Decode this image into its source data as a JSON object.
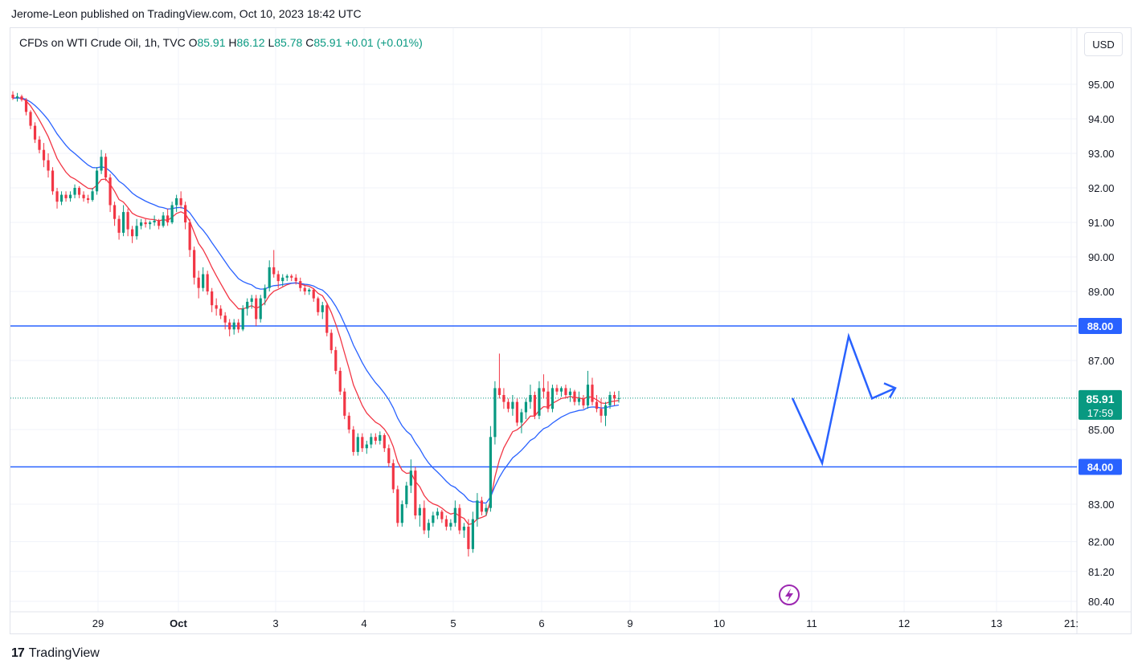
{
  "header": {
    "published": "Jerome-Leon published on TradingView.com, Oct 10, 2023 18:42 UTC"
  },
  "legend": {
    "symbol": "CFDs on WTI Crude Oil, 1h, TVC",
    "o_label": "O",
    "o_value": "85.91",
    "h_label": "H",
    "h_value": "86.12",
    "l_label": "L",
    "l_value": "85.78",
    "c_label": "C",
    "c_value": "85.91",
    "change": "+0.01 (+0.01%)"
  },
  "currency_button": "USD",
  "footer": {
    "brand": "TradingView",
    "logo": "17"
  },
  "colors": {
    "up": "#089981",
    "down": "#f23645",
    "level": "#2962ff",
    "ma_fast": "#f23645",
    "ma_slow": "#2962ff",
    "last_price": "#089981"
  },
  "chart_data": {
    "type": "candlestick",
    "title": "",
    "y_axis_ticks": [
      "95.00",
      "94.00",
      "93.00",
      "92.00",
      "91.00",
      "90.00",
      "89.00",
      "87.00",
      "85.00",
      "83.00",
      "82.00",
      "81.20",
      "80.40"
    ],
    "x_axis_ticks": [
      "29",
      "Oct",
      "3",
      "4",
      "5",
      "6",
      "9",
      "10",
      "11",
      "12",
      "13",
      "21:"
    ],
    "horizontal_levels": [
      {
        "value": 88.0,
        "label": "88.00"
      },
      {
        "value": 84.0,
        "label": "84.00"
      }
    ],
    "last_price": {
      "value": 85.91,
      "label": "85.91",
      "countdown": "17:59"
    },
    "ohlc": [
      [
        94.7,
        94.8,
        94.55,
        94.6
      ],
      [
        94.6,
        94.75,
        94.5,
        94.65
      ],
      [
        94.65,
        94.7,
        94.5,
        94.55
      ],
      [
        94.55,
        94.6,
        94.1,
        94.2
      ],
      [
        94.2,
        94.25,
        93.7,
        93.8
      ],
      [
        93.8,
        93.9,
        93.3,
        93.4
      ],
      [
        93.4,
        93.5,
        93.0,
        93.1
      ],
      [
        93.1,
        93.3,
        92.6,
        92.8
      ],
      [
        92.8,
        93.0,
        92.3,
        92.5
      ],
      [
        92.5,
        92.6,
        91.8,
        91.9
      ],
      [
        91.9,
        92.0,
        91.4,
        91.6
      ],
      [
        91.6,
        91.9,
        91.5,
        91.8
      ],
      [
        91.8,
        91.9,
        91.6,
        91.7
      ],
      [
        91.7,
        91.9,
        91.6,
        91.8
      ],
      [
        91.8,
        92.1,
        91.7,
        92.0
      ],
      [
        92.0,
        92.05,
        91.7,
        91.8
      ],
      [
        91.8,
        91.9,
        91.6,
        91.7
      ],
      [
        91.7,
        91.8,
        91.55,
        91.65
      ],
      [
        91.65,
        92.0,
        91.6,
        91.9
      ],
      [
        91.9,
        92.6,
        91.8,
        92.5
      ],
      [
        92.5,
        93.1,
        92.4,
        92.9
      ],
      [
        92.9,
        93.0,
        92.2,
        92.3
      ],
      [
        92.3,
        92.4,
        91.3,
        91.5
      ],
      [
        91.5,
        91.6,
        90.9,
        91.1
      ],
      [
        91.1,
        91.2,
        90.5,
        90.7
      ],
      [
        90.7,
        91.5,
        90.6,
        91.3
      ],
      [
        91.3,
        91.4,
        90.6,
        90.8
      ],
      [
        90.8,
        90.9,
        90.4,
        90.6
      ],
      [
        90.6,
        91.1,
        90.5,
        90.9
      ],
      [
        90.9,
        91.1,
        90.8,
        91.0
      ],
      [
        91.0,
        91.1,
        90.85,
        90.95
      ],
      [
        90.95,
        91.05,
        90.8,
        91.0
      ],
      [
        91.0,
        91.2,
        90.9,
        91.05
      ],
      [
        91.05,
        91.1,
        90.8,
        90.9
      ],
      [
        90.9,
        91.3,
        90.85,
        91.2
      ],
      [
        91.2,
        91.4,
        90.9,
        91.0
      ],
      [
        91.0,
        91.6,
        90.95,
        91.5
      ],
      [
        91.5,
        91.8,
        91.3,
        91.7
      ],
      [
        91.7,
        91.9,
        91.4,
        91.5
      ],
      [
        91.5,
        91.6,
        90.8,
        91.0
      ],
      [
        91.0,
        91.1,
        90.0,
        90.2
      ],
      [
        90.2,
        90.3,
        89.2,
        89.4
      ],
      [
        89.4,
        89.6,
        88.8,
        89.1
      ],
      [
        89.1,
        89.7,
        89.0,
        89.5
      ],
      [
        89.5,
        89.6,
        88.9,
        89.0
      ],
      [
        89.0,
        89.1,
        88.4,
        88.6
      ],
      [
        88.6,
        88.8,
        88.3,
        88.5
      ],
      [
        88.5,
        88.6,
        88.2,
        88.3
      ],
      [
        88.3,
        88.4,
        87.9,
        88.1
      ],
      [
        88.1,
        88.2,
        87.7,
        87.9
      ],
      [
        87.9,
        88.2,
        87.75,
        88.1
      ],
      [
        88.1,
        88.2,
        87.8,
        87.9
      ],
      [
        87.9,
        88.6,
        87.85,
        88.5
      ],
      [
        88.5,
        88.8,
        88.3,
        88.7
      ],
      [
        88.7,
        88.9,
        88.5,
        88.8
      ],
      [
        88.8,
        88.9,
        88.0,
        88.2
      ],
      [
        88.2,
        88.9,
        88.1,
        88.8
      ],
      [
        88.8,
        89.2,
        88.6,
        89.1
      ],
      [
        89.1,
        89.9,
        89.0,
        89.7
      ],
      [
        89.7,
        90.2,
        89.4,
        89.5
      ],
      [
        89.5,
        89.6,
        89.1,
        89.3
      ],
      [
        89.3,
        89.5,
        89.15,
        89.4
      ],
      [
        89.4,
        89.5,
        89.3,
        89.45
      ],
      [
        89.45,
        89.5,
        89.3,
        89.4
      ],
      [
        89.4,
        89.5,
        89.2,
        89.3
      ],
      [
        89.3,
        89.4,
        89.0,
        89.1
      ],
      [
        89.1,
        89.2,
        88.9,
        89.0
      ],
      [
        89.0,
        89.1,
        88.9,
        89.05
      ],
      [
        89.05,
        89.1,
        88.7,
        88.8
      ],
      [
        88.8,
        88.85,
        88.3,
        88.4
      ],
      [
        88.4,
        88.7,
        88.2,
        88.6
      ],
      [
        88.6,
        88.65,
        87.7,
        87.8
      ],
      [
        87.8,
        87.9,
        87.2,
        87.3
      ],
      [
        87.3,
        87.4,
        86.6,
        86.7
      ],
      [
        86.7,
        86.8,
        86.0,
        86.1
      ],
      [
        86.1,
        86.2,
        85.3,
        85.4
      ],
      [
        85.4,
        85.5,
        84.9,
        85.0
      ],
      [
        85.0,
        85.1,
        84.3,
        84.4
      ],
      [
        84.4,
        84.9,
        84.3,
        84.8
      ],
      [
        84.8,
        84.9,
        84.4,
        84.5
      ],
      [
        84.5,
        84.7,
        84.35,
        84.6
      ],
      [
        84.6,
        84.9,
        84.5,
        84.8
      ],
      [
        84.8,
        84.9,
        84.6,
        84.7
      ],
      [
        84.7,
        84.95,
        84.6,
        84.85
      ],
      [
        84.85,
        84.9,
        84.4,
        84.5
      ],
      [
        84.5,
        84.6,
        84.0,
        84.1
      ],
      [
        84.1,
        84.2,
        83.3,
        83.4
      ],
      [
        83.4,
        83.5,
        82.4,
        82.5
      ],
      [
        82.5,
        83.1,
        82.4,
        83.0
      ],
      [
        83.0,
        83.6,
        82.9,
        83.5
      ],
      [
        83.5,
        84.2,
        83.3,
        83.9
      ],
      [
        83.9,
        84.0,
        82.6,
        82.7
      ],
      [
        82.7,
        83.0,
        82.4,
        82.9
      ],
      [
        82.9,
        83.1,
        82.2,
        82.3
      ],
      [
        82.3,
        82.6,
        82.1,
        82.5
      ],
      [
        82.5,
        82.8,
        82.4,
        82.7
      ],
      [
        82.7,
        82.9,
        82.6,
        82.8
      ],
      [
        82.8,
        82.85,
        82.5,
        82.6
      ],
      [
        82.6,
        82.7,
        82.3,
        82.4
      ],
      [
        82.4,
        82.6,
        82.3,
        82.5
      ],
      [
        82.5,
        83.1,
        82.4,
        82.9
      ],
      [
        82.9,
        83.0,
        82.2,
        82.3
      ],
      [
        82.3,
        82.5,
        82.1,
        82.4
      ],
      [
        82.4,
        82.6,
        81.6,
        81.8
      ],
      [
        81.8,
        82.8,
        81.7,
        82.6
      ],
      [
        82.6,
        83.3,
        82.4,
        83.1
      ],
      [
        83.1,
        83.2,
        82.7,
        82.8
      ],
      [
        82.8,
        83.0,
        82.7,
        82.9
      ],
      [
        82.9,
        85.1,
        82.8,
        84.8
      ],
      [
        84.8,
        86.4,
        84.6,
        86.2
      ],
      [
        86.2,
        87.2,
        85.9,
        86.0
      ],
      [
        86.0,
        86.2,
        85.6,
        85.8
      ],
      [
        85.8,
        85.9,
        85.5,
        85.6
      ],
      [
        85.6,
        86.0,
        85.4,
        85.8
      ],
      [
        85.8,
        85.9,
        85.1,
        85.2
      ],
      [
        85.2,
        85.6,
        84.9,
        85.5
      ],
      [
        85.5,
        85.9,
        85.3,
        85.8
      ],
      [
        85.8,
        86.3,
        85.6,
        86.0
      ],
      [
        86.0,
        86.1,
        85.3,
        85.4
      ],
      [
        85.4,
        86.4,
        85.3,
        86.2
      ],
      [
        86.2,
        86.6,
        85.9,
        86.1
      ],
      [
        86.1,
        86.4,
        85.5,
        85.6
      ],
      [
        85.6,
        86.3,
        85.5,
        86.2
      ],
      [
        86.2,
        86.3,
        86.0,
        86.1
      ],
      [
        86.1,
        86.25,
        85.95,
        86.2
      ],
      [
        86.2,
        86.3,
        85.9,
        86.0
      ],
      [
        86.0,
        86.2,
        85.8,
        86.1
      ],
      [
        86.1,
        86.15,
        85.7,
        85.8
      ],
      [
        85.8,
        86.1,
        85.7,
        85.9
      ],
      [
        85.9,
        86.0,
        85.6,
        85.7
      ],
      [
        85.7,
        86.7,
        85.6,
        86.3
      ],
      [
        86.3,
        86.5,
        85.7,
        85.8
      ],
      [
        85.8,
        86.0,
        85.5,
        85.6
      ],
      [
        85.6,
        85.9,
        85.2,
        85.4
      ],
      [
        85.4,
        85.8,
        85.1,
        85.7
      ],
      [
        85.7,
        86.1,
        85.6,
        86.0
      ],
      [
        86.0,
        86.1,
        85.7,
        85.9
      ],
      [
        85.9,
        86.12,
        85.78,
        85.91
      ]
    ],
    "forecast_path": [
      [
        "Oct 10 21:00",
        85.91
      ],
      [
        "Oct 11 02:00",
        84.1
      ],
      [
        "Oct 11 09:00",
        87.7
      ],
      [
        "Oct 11 14:00",
        85.9
      ],
      [
        "Oct 11 21:00",
        86.2
      ]
    ]
  }
}
